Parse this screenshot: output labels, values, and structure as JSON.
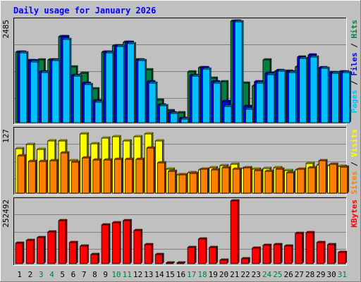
{
  "chart_data": {
    "type": "bar",
    "title": "Daily usage for January 2026",
    "categories": [
      "1",
      "2",
      "3",
      "4",
      "5",
      "6",
      "7",
      "8",
      "9",
      "10",
      "11",
      "12",
      "13",
      "14",
      "15",
      "16",
      "17",
      "18",
      "19",
      "20",
      "21",
      "22",
      "23",
      "24",
      "25",
      "26",
      "27",
      "28",
      "29",
      "30",
      "31"
    ],
    "weekend_days": [
      3,
      4,
      10,
      11,
      17,
      18,
      24,
      25,
      31
    ],
    "panels": [
      {
        "id": "pages-files-hits",
        "ylabel_max": "2485",
        "ylim": [
          0,
          2485
        ],
        "grid": true,
        "legend": [
          {
            "text": "Pages",
            "color": "#00c0ff"
          },
          {
            "text": " / ",
            "color": "#000000"
          },
          {
            "text": "Files",
            "color": "#0000ff"
          },
          {
            "text": " / ",
            "color": "#000000"
          },
          {
            "text": "Hits",
            "color": "#008040"
          }
        ],
        "series": [
          {
            "name": "Hits",
            "color": "#008040",
            "values": [
              1720,
              1510,
              1540,
              1530,
              2100,
              1360,
              1200,
              830,
              1720,
              1880,
              1970,
              1530,
              1300,
              560,
              300,
              240,
              1240,
              1340,
              1090,
              1000,
              2485,
              970,
              900,
              1540,
              1240,
              1260,
              1360,
              1300,
              1100,
              1230,
              1240
            ]
          },
          {
            "name": "Files",
            "color": "#0000ff",
            "values": [
              1720,
              1510,
              1240,
              1530,
              2100,
              1150,
              970,
              530,
              1720,
              1880,
              1970,
              1530,
              1000,
              430,
              240,
              100,
              1160,
              1340,
              1000,
              520,
              2485,
              390,
              1000,
              1200,
              1280,
              1240,
              1600,
              1650,
              1350,
              1230,
              1240
            ]
          },
          {
            "name": "Pages",
            "color": "#00c0ff",
            "values": [
              1700,
              1490,
              1220,
              1510,
              2030,
              1140,
              940,
              500,
              1700,
              1860,
              1940,
              1510,
              970,
              410,
              230,
              80,
              1140,
              1310,
              970,
              390,
              2460,
              330,
              970,
              1180,
              1260,
              1220,
              1570,
              1600,
              1330,
              1210,
              1220
            ]
          }
        ]
      },
      {
        "id": "sites-visits",
        "ylabel_max": "127",
        "ylim": [
          0,
          127
        ],
        "grid": true,
        "legend": [
          {
            "text": "Sites",
            "color": "#ff8000"
          },
          {
            "text": " / ",
            "color": "#000000"
          },
          {
            "text": "Visits",
            "color": "#ffff00"
          }
        ],
        "series": [
          {
            "name": "Visits",
            "color": "#ffff00",
            "values": [
              90,
              98,
              88,
              105,
              106,
              66,
              120,
              100,
              112,
              114,
              106,
              114,
              120,
              106,
              48,
              37,
              42,
              47,
              52,
              55,
              58,
              50,
              49,
              50,
              51,
              45,
              47,
              60,
              57,
              56,
              54
            ]
          },
          {
            "name": "Sites",
            "color": "#ff8000",
            "values": [
              76,
              64,
              64,
              66,
              82,
              63,
              72,
              67,
              67,
              68,
              68,
              69,
              92,
              61,
              44,
              37,
              40,
              48,
              47,
              51,
              49,
              52,
              46,
              44,
              48,
              42,
              49,
              52,
              65,
              58,
              53
            ]
          }
        ]
      },
      {
        "id": "kbytes",
        "ylabel_max": "252492",
        "ylim": [
          0,
          252492
        ],
        "grid": true,
        "legend": [
          {
            "text": "KBytes",
            "color": "#ff0000"
          }
        ],
        "series": [
          {
            "name": "KBytes",
            "color": "#ff0000",
            "values": [
              83000,
              93000,
              105000,
              127000,
              172000,
              85000,
              72000,
              36000,
              155000,
              165000,
              172000,
              132000,
              77000,
              36000,
              3000,
              2000,
              66000,
              98000,
              66000,
              13000,
              252492,
              20000,
              62000,
              74000,
              77000,
              70000,
              122000,
              126000,
              86000,
              77000,
              46000
            ]
          }
        ]
      }
    ]
  }
}
